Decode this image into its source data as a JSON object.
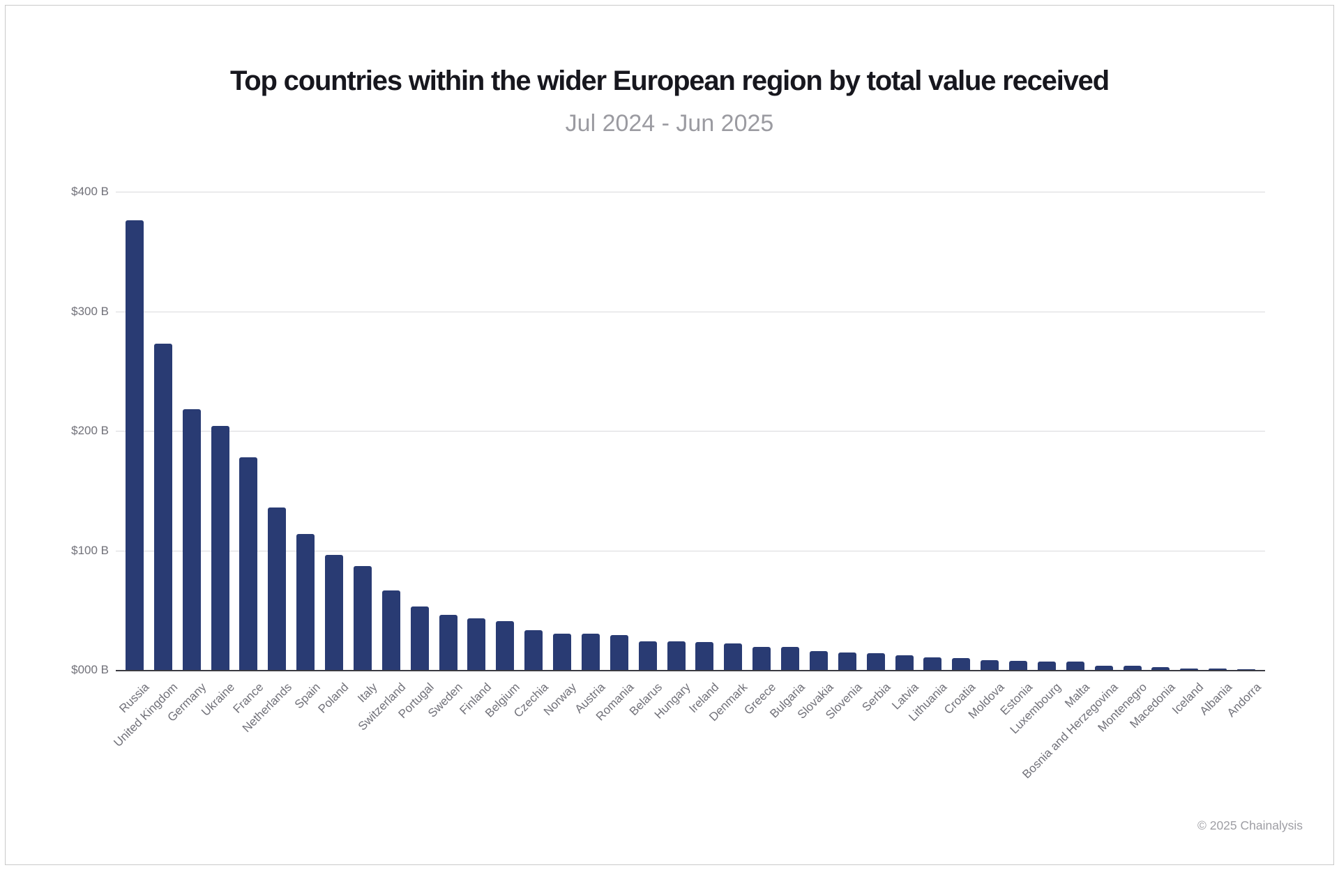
{
  "header": {
    "title": "Top countries within the wider European region by total value received",
    "subtitle": "Jul 2024 - Jun 2025"
  },
  "footer": {
    "copyright": "© 2025 Chainalysis"
  },
  "colors": {
    "bar": "#293b73",
    "gridline": "#d9d9dc",
    "baseline": "#3b3b42",
    "title": "#17171e",
    "subtitle": "#9b9ba1",
    "axis_text": "#717179",
    "copyright": "#9e9ea4",
    "frame_border": "#c9c9c9"
  },
  "y_axis": {
    "tick_labels": [
      "$400 B",
      "$300 B",
      "$200 B",
      "$100 B",
      "$000 B"
    ],
    "max_value": 400
  },
  "chart_data": {
    "type": "bar",
    "title": "Top countries within the wider European region by total value received",
    "subtitle": "Jul 2024 - Jun 2025",
    "unit": "USD billions received",
    "xlabel": "",
    "ylabel": "",
    "ylim": [
      0,
      400
    ],
    "grid": true,
    "legend": false,
    "categories": [
      "Russia",
      "United Kingdom",
      "Germany",
      "Ukraine",
      "France",
      "Netherlands",
      "Spain",
      "Poland",
      "Italy",
      "Switzerland",
      "Portugal",
      "Sweden",
      "Finland",
      "Belgium",
      "Czechia",
      "Norway",
      "Austria",
      "Romania",
      "Belarus",
      "Hungary",
      "Ireland",
      "Denmark",
      "Greece",
      "Bulgaria",
      "Slovakia",
      "Slovenia",
      "Serbia",
      "Latvia",
      "Lithuania",
      "Croatia",
      "Moldova",
      "Estonia",
      "Luxembourg",
      "Malta",
      "Bosnia and Herzegovina",
      "Montenegro",
      "Macedonia",
      "Iceland",
      "Albania",
      "Andorra"
    ],
    "values": [
      376,
      273,
      218,
      204,
      178,
      136,
      114,
      96,
      87,
      66.5,
      53,
      46,
      43,
      41,
      33,
      30.6,
      30.3,
      29.4,
      24.2,
      24,
      23.2,
      22.2,
      19.5,
      19.3,
      15.5,
      14.4,
      14.2,
      12.2,
      10.3,
      10,
      8,
      7.8,
      7,
      6.8,
      3.7,
      3.4,
      2.2,
      1.3,
      1,
      0.2
    ]
  }
}
